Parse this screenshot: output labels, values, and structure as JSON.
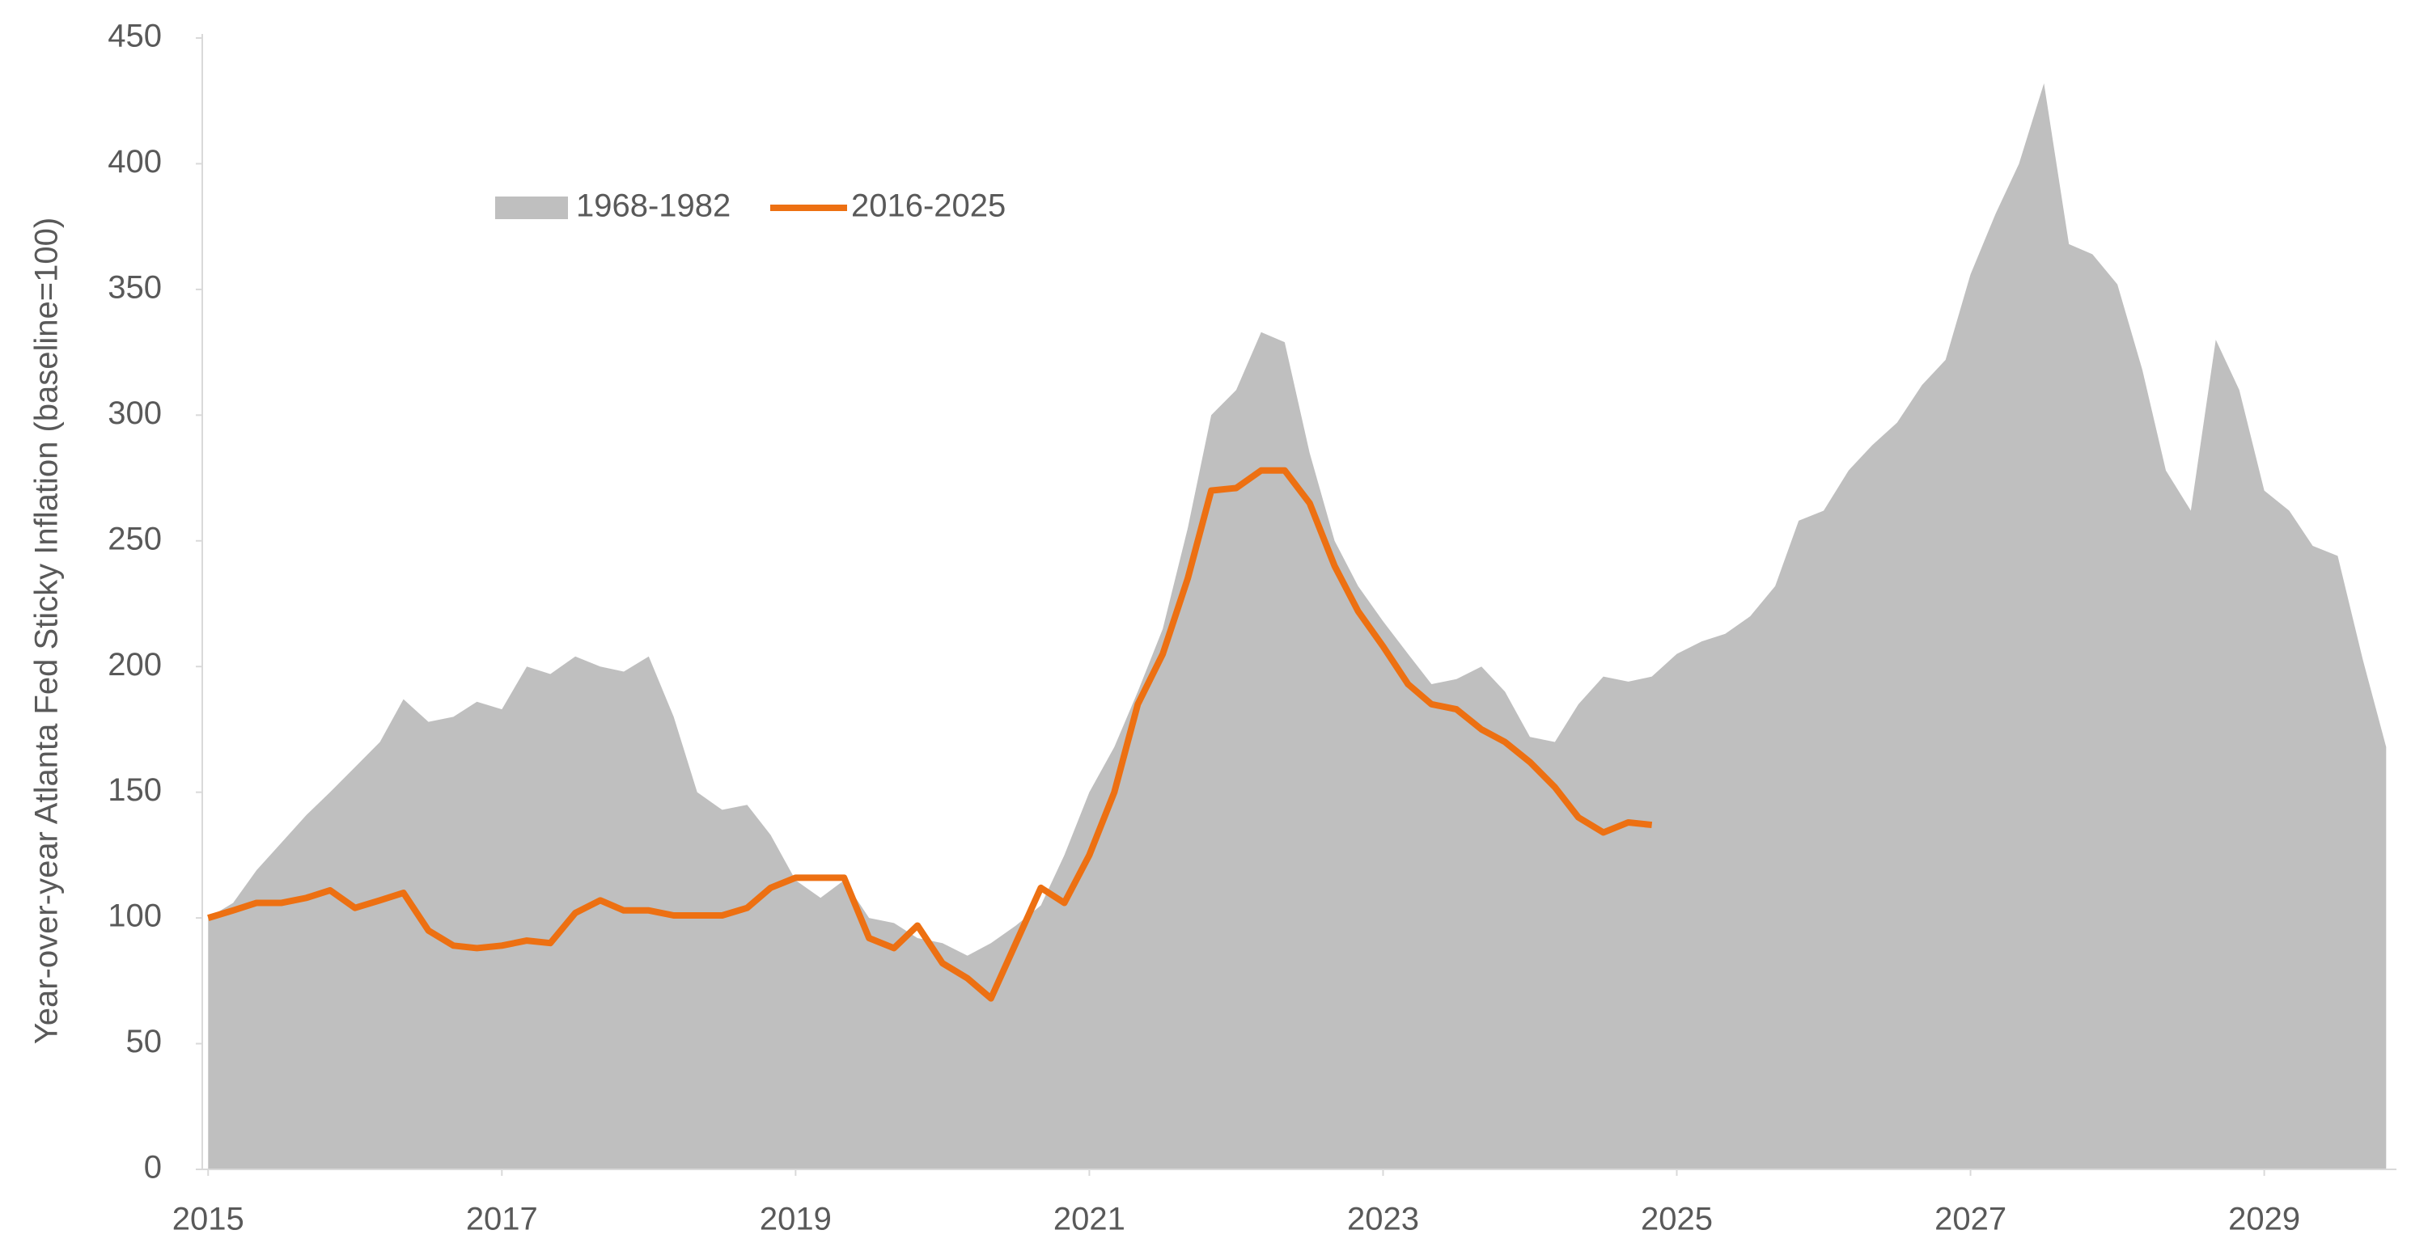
{
  "chart_data": {
    "type": "area-line",
    "y_label": "Year-over-year Atlanta Fed Sticky Inflation (baseline=100)",
    "x": [
      2015,
      2015.17,
      2015.33,
      2015.5,
      2015.67,
      2015.83,
      2016,
      2016.17,
      2016.33,
      2016.5,
      2016.67,
      2016.83,
      2017,
      2017.17,
      2017.33,
      2017.5,
      2017.67,
      2017.83,
      2018,
      2018.17,
      2018.33,
      2018.5,
      2018.67,
      2018.83,
      2019,
      2019.17,
      2019.33,
      2019.5,
      2019.67,
      2019.83,
      2020,
      2020.17,
      2020.33,
      2020.5,
      2020.67,
      2020.83,
      2021,
      2021.17,
      2021.33,
      2021.5,
      2021.67,
      2021.83,
      2022,
      2022.17,
      2022.33,
      2022.5,
      2022.67,
      2022.83,
      2023,
      2023.17,
      2023.33,
      2023.5,
      2023.67,
      2023.83,
      2024,
      2024.17,
      2024.33,
      2024.5,
      2024.67,
      2024.83,
      2025,
      2025.17,
      2025.33,
      2025.5,
      2025.67,
      2025.83,
      2026,
      2026.17,
      2026.33,
      2026.5,
      2026.67,
      2026.83,
      2027,
      2027.17,
      2027.33,
      2027.5,
      2027.67,
      2027.83,
      2028,
      2028.17,
      2028.33,
      2028.5,
      2028.67,
      2028.83,
      2029,
      2029.17,
      2029.33,
      2029.5,
      2029.67,
      2029.83
    ],
    "series": [
      {
        "name": "1968-1982",
        "color": "#bfbfbf",
        "kind": "area",
        "values": [
          100,
          106,
          119,
          130,
          141,
          150,
          160,
          170,
          187,
          178,
          180,
          186,
          183,
          200,
          197,
          204,
          200,
          198,
          204,
          180,
          150,
          143,
          145,
          133,
          115,
          108,
          115,
          100,
          98,
          92,
          90,
          85,
          90,
          97,
          105,
          125,
          150,
          168,
          190,
          215,
          255,
          300,
          310,
          333,
          329,
          285,
          250,
          232,
          218,
          205,
          193,
          195,
          200,
          190,
          172,
          170,
          185,
          196,
          194,
          196,
          205,
          210,
          213,
          220,
          232,
          258,
          262,
          278,
          288,
          297,
          312,
          322,
          356,
          380,
          400,
          432,
          368,
          364,
          352,
          318,
          278,
          262,
          330,
          310,
          270,
          262,
          248,
          244,
          203,
          168
        ]
      },
      {
        "name": "2016-2025",
        "color": "#ed7012",
        "kind": "line",
        "values": [
          100,
          103,
          106,
          106,
          108,
          111,
          104,
          107,
          110,
          95,
          89,
          88,
          89,
          91,
          90,
          102,
          107,
          103,
          103,
          101,
          101,
          101,
          104,
          112,
          116,
          116,
          116,
          92,
          88,
          97,
          82,
          76,
          68,
          90,
          112,
          106,
          125,
          150,
          185,
          205,
          235,
          270,
          271,
          278,
          278,
          265,
          240,
          222,
          208,
          193,
          185,
          183,
          175,
          170,
          162,
          152,
          140,
          134,
          138,
          137,
          null,
          null,
          null,
          null,
          null,
          null,
          null,
          null,
          null,
          null,
          null,
          null,
          null,
          null,
          null,
          null,
          null,
          null,
          null,
          null,
          null,
          null,
          null,
          null,
          null,
          null,
          null,
          null,
          null,
          null
        ]
      }
    ],
    "xlim": [
      2014.96,
      2029.9
    ],
    "xticks": [
      2015,
      2017,
      2019,
      2021,
      2023,
      2025,
      2027,
      2029
    ],
    "ylim": [
      0,
      450
    ],
    "yticks": [
      0,
      50,
      100,
      150,
      200,
      250,
      300,
      350,
      400,
      450
    ]
  }
}
